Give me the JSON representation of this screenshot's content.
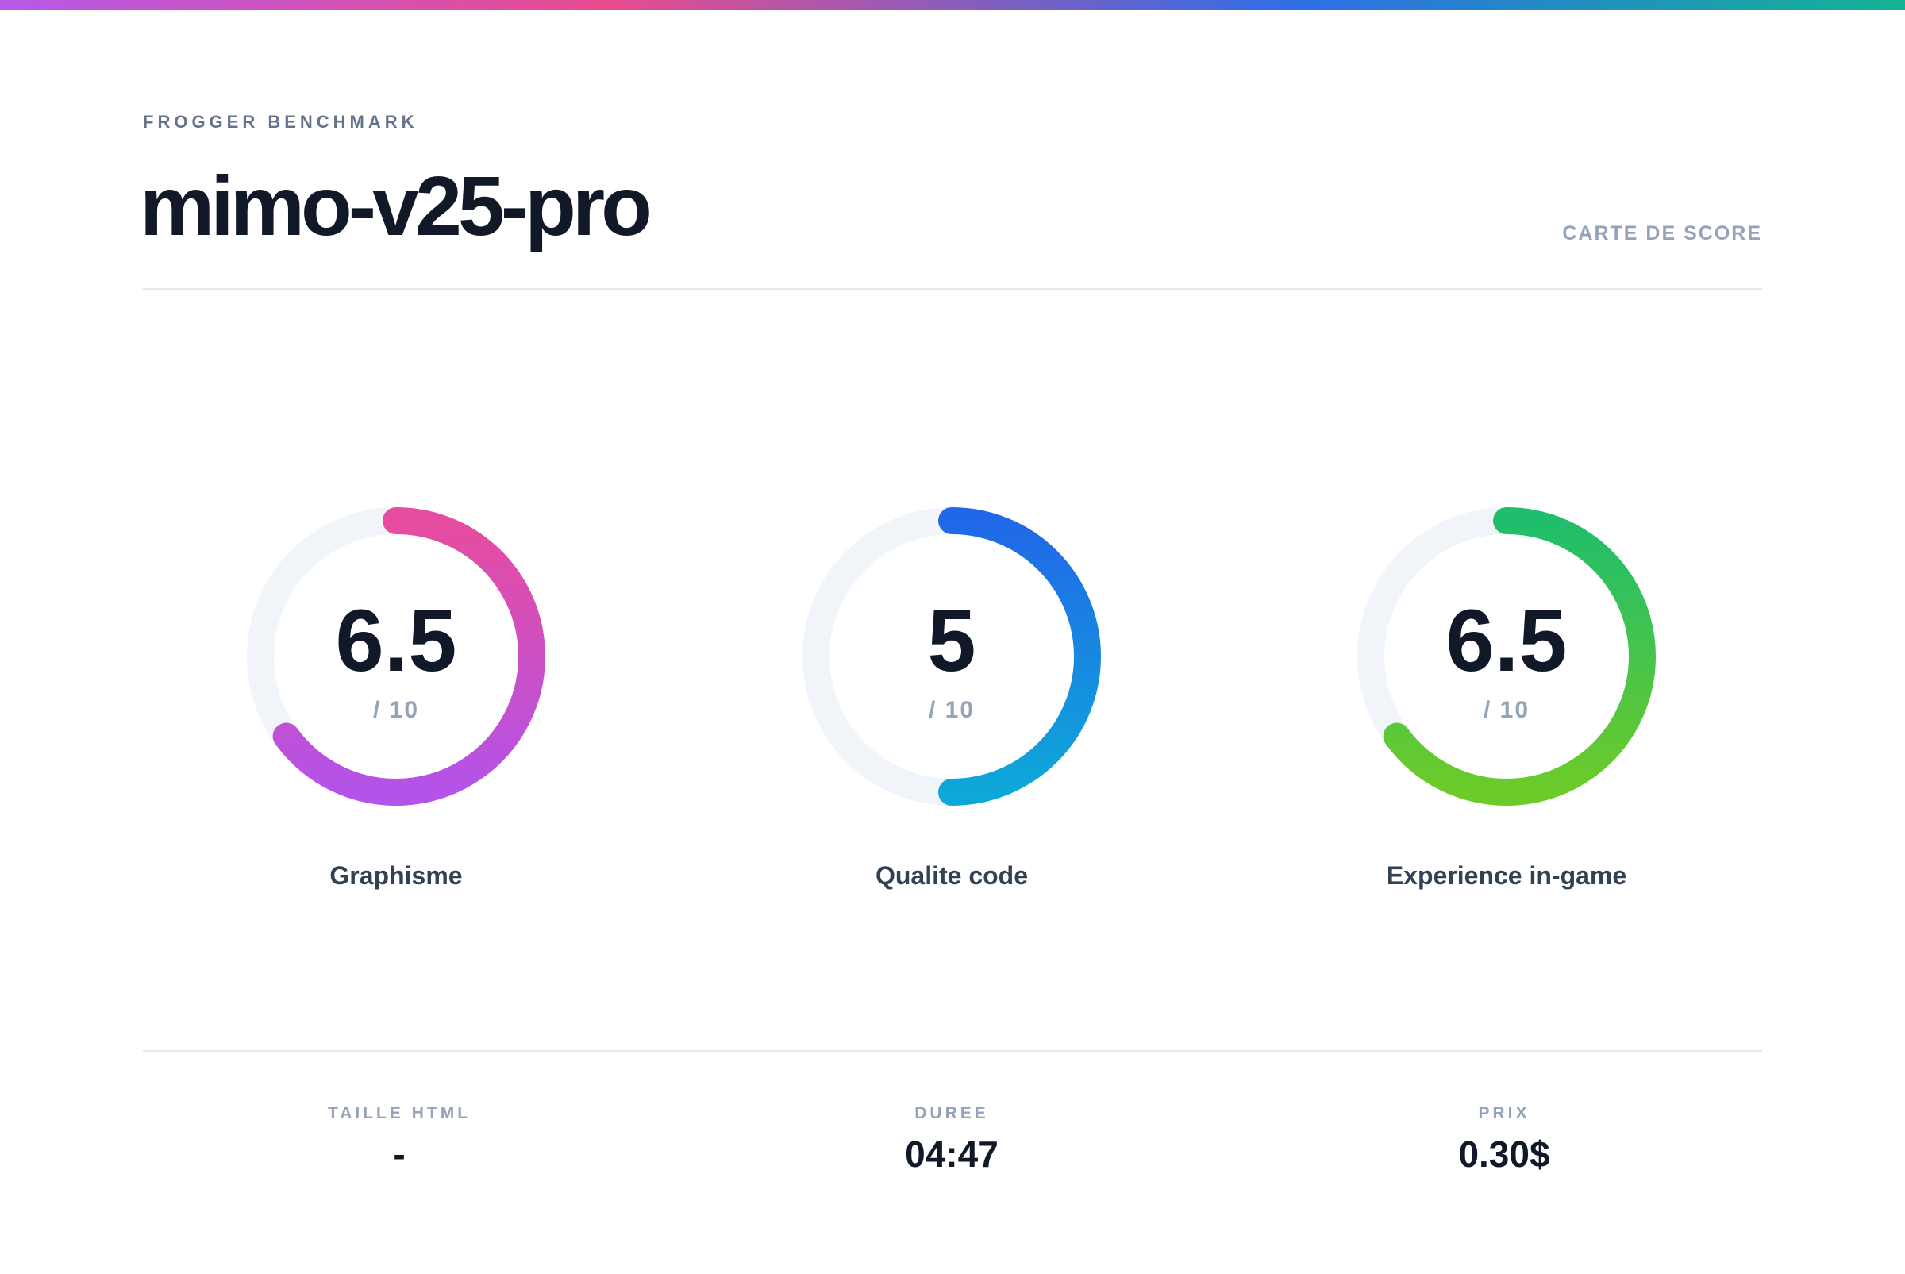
{
  "header": {
    "eyebrow": "FROGGER BENCHMARK",
    "title": "mimo-v25-pro",
    "tag": "CARTE DE SCORE"
  },
  "scores": [
    {
      "value": 6.5,
      "max": {
        "value": 10,
        "label": "/ 10"
      },
      "label": "Graphisme",
      "gradient": [
        "#e74c9f",
        "#b353e8"
      ]
    },
    {
      "value": 5,
      "max": {
        "value": 10,
        "label": "/ 10"
      },
      "label": "Qualite code",
      "gradient": [
        "#2168e8",
        "#0ea8d8"
      ]
    },
    {
      "value": 6.5,
      "max": {
        "value": 10,
        "label": "/ 10"
      },
      "label": "Experience in-game",
      "gradient": [
        "#1fbe6c",
        "#6dcb29"
      ]
    }
  ],
  "stats": [
    {
      "label": "TAILLE HTML",
      "value": "-"
    },
    {
      "label": "DUREE",
      "value": "04:47"
    },
    {
      "label": "PRIX",
      "value": "0.30$"
    }
  ]
}
